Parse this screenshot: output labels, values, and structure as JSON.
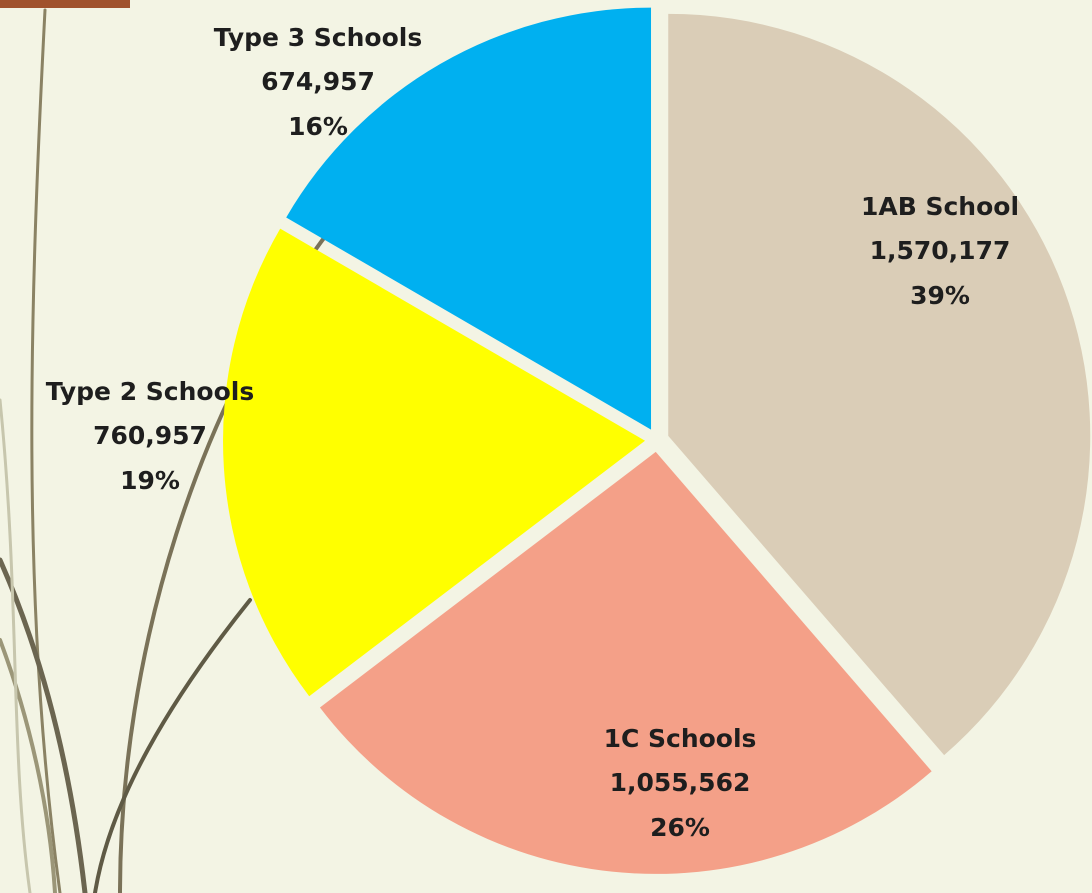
{
  "chart_data": {
    "type": "pie",
    "categories": [
      "1AB School",
      "1C Schools",
      "Type 2 Schools",
      "Type 3 Schools"
    ],
    "values": [
      1570177,
      1055562,
      760957,
      674957
    ],
    "value_labels": [
      "1,570,177",
      "1,055,562",
      "760,957",
      "674,957"
    ],
    "percent_labels": [
      "39%",
      "26%",
      "19%",
      "16%"
    ],
    "colors": [
      "#dacdb7",
      "#f4a088",
      "#ffff00",
      "#00b0f0"
    ]
  }
}
